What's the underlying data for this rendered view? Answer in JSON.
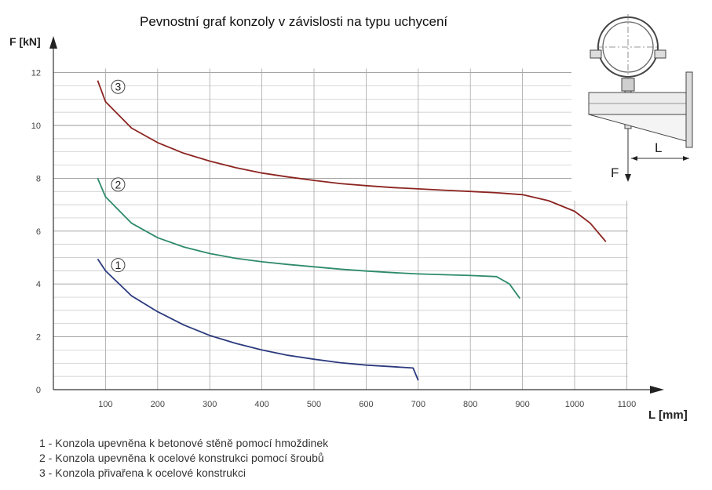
{
  "chart_data": {
    "type": "line",
    "title": "Pevnostní graf konzoly v závislosti na typu uchycení",
    "xlabel": "L [mm]",
    "ylabel": "F [kN]",
    "xlim": [
      0,
      1150
    ],
    "ylim": [
      0,
      12.5
    ],
    "x_ticks": [
      100,
      200,
      300,
      400,
      500,
      600,
      700,
      800,
      900,
      1000,
      1100
    ],
    "y_ticks": [
      0,
      2,
      4,
      6,
      8,
      10,
      12
    ],
    "grid": true,
    "series": [
      {
        "name": "1",
        "color": "#2b3a7e",
        "points": [
          [
            85,
            4.95
          ],
          [
            100,
            4.5
          ],
          [
            150,
            3.55
          ],
          [
            200,
            2.95
          ],
          [
            250,
            2.45
          ],
          [
            300,
            2.05
          ],
          [
            350,
            1.75
          ],
          [
            400,
            1.5
          ],
          [
            450,
            1.3
          ],
          [
            500,
            1.15
          ],
          [
            550,
            1.02
          ],
          [
            600,
            0.93
          ],
          [
            650,
            0.87
          ],
          [
            690,
            0.82
          ],
          [
            700,
            0.35
          ]
        ]
      },
      {
        "name": "2",
        "color": "#2e8b6a",
        "points": [
          [
            85,
            8.0
          ],
          [
            100,
            7.3
          ],
          [
            150,
            6.3
          ],
          [
            200,
            5.75
          ],
          [
            250,
            5.4
          ],
          [
            300,
            5.15
          ],
          [
            350,
            4.97
          ],
          [
            400,
            4.84
          ],
          [
            450,
            4.74
          ],
          [
            500,
            4.65
          ],
          [
            550,
            4.56
          ],
          [
            600,
            4.49
          ],
          [
            650,
            4.43
          ],
          [
            700,
            4.38
          ],
          [
            750,
            4.35
          ],
          [
            800,
            4.32
          ],
          [
            850,
            4.28
          ],
          [
            875,
            4.0
          ],
          [
            895,
            3.45
          ]
        ]
      },
      {
        "name": "3",
        "color": "#8b2420",
        "points": [
          [
            85,
            11.7
          ],
          [
            100,
            10.9
          ],
          [
            150,
            9.9
          ],
          [
            200,
            9.35
          ],
          [
            250,
            8.95
          ],
          [
            300,
            8.65
          ],
          [
            350,
            8.4
          ],
          [
            400,
            8.2
          ],
          [
            450,
            8.05
          ],
          [
            500,
            7.92
          ],
          [
            550,
            7.8
          ],
          [
            600,
            7.72
          ],
          [
            650,
            7.65
          ],
          [
            700,
            7.6
          ],
          [
            750,
            7.55
          ],
          [
            800,
            7.5
          ],
          [
            850,
            7.45
          ],
          [
            900,
            7.38
          ],
          [
            950,
            7.15
          ],
          [
            1000,
            6.75
          ],
          [
            1030,
            6.3
          ],
          [
            1060,
            5.6
          ]
        ]
      }
    ],
    "legend_entries": [
      "1 - Konzola upevněna k betonové stěně pomocí hmoždinek",
      "2 - Konzola upevněna k ocelové konstrukci pomocí šroubů",
      "3 - Konzola přivařena k ocelové konstrukci"
    ]
  },
  "inset": {
    "force_label": "F",
    "length_label": "L"
  }
}
